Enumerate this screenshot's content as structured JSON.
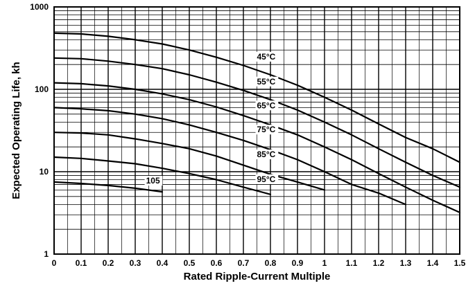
{
  "chart_data": {
    "type": "line",
    "title": "",
    "xlabel": "Rated Ripple-Current Multiple",
    "ylabel": "Expected Operating Life, kh",
    "xlim": [
      0,
      1.5
    ],
    "ylim": [
      1,
      1000
    ],
    "yscale": "log",
    "grid": true,
    "x_ticks": [
      "0",
      "0.1",
      "0.2",
      "0.3",
      "0.4",
      "0.5",
      "0.6",
      "0.7",
      "0.8",
      "0.9",
      "1",
      "1.1",
      "1.2",
      "1.3",
      "1.4",
      "1.5"
    ],
    "y_ticks": [
      "1",
      "10",
      "100",
      "1000"
    ],
    "series": [
      {
        "name": "45°C",
        "x": [
          0,
          0.1,
          0.2,
          0.3,
          0.4,
          0.5,
          0.6,
          0.7,
          0.8,
          0.9,
          1.0,
          1.1,
          1.2,
          1.3,
          1.4,
          1.5
        ],
        "y": [
          480,
          470,
          440,
          400,
          355,
          300,
          245,
          195,
          150,
          112,
          80,
          56,
          38,
          26,
          19,
          13
        ]
      },
      {
        "name": "55°C",
        "x": [
          0,
          0.1,
          0.2,
          0.3,
          0.4,
          0.5,
          0.6,
          0.7,
          0.8,
          0.9,
          1.0,
          1.1,
          1.2,
          1.3,
          1.4,
          1.5
        ],
        "y": [
          240,
          235,
          220,
          200,
          178,
          150,
          122,
          97,
          75,
          56,
          40,
          28,
          19,
          13,
          9,
          6.5
        ]
      },
      {
        "name": "65°C",
        "x": [
          0,
          0.1,
          0.2,
          0.3,
          0.4,
          0.5,
          0.6,
          0.7,
          0.8,
          0.9,
          1.0,
          1.1,
          1.2,
          1.3,
          1.4,
          1.5
        ],
        "y": [
          120,
          117,
          110,
          100,
          88,
          75,
          61,
          48,
          37,
          28,
          20,
          14,
          9.5,
          6.5,
          4.5,
          3.2
        ]
      },
      {
        "name": "75°C",
        "x": [
          0,
          0.1,
          0.2,
          0.3,
          0.4,
          0.5,
          0.6,
          0.7,
          0.8,
          0.9,
          1.0,
          1.1,
          1.2,
          1.3
        ],
        "y": [
          60,
          58,
          55,
          50,
          44,
          37,
          30,
          24,
          18.5,
          14,
          10,
          7,
          5.5,
          4
        ]
      },
      {
        "name": "85°C",
        "x": [
          0,
          0.1,
          0.2,
          0.3,
          0.4,
          0.5,
          0.6,
          0.7,
          0.8,
          0.9,
          1.0
        ],
        "y": [
          30,
          29.5,
          28,
          25,
          22,
          19,
          15.5,
          12,
          9.3,
          7.5,
          6
        ]
      },
      {
        "name": "95°C",
        "x": [
          0,
          0.1,
          0.2,
          0.3,
          0.4,
          0.5,
          0.6,
          0.7,
          0.8
        ],
        "y": [
          15,
          14.5,
          13.5,
          12.5,
          11,
          9.5,
          8,
          6.5,
          5.3
        ]
      },
      {
        "name": "105",
        "x": [
          0,
          0.1,
          0.2,
          0.3,
          0.4
        ],
        "y": [
          7.5,
          7.2,
          6.8,
          6.3,
          5.7
        ]
      }
    ],
    "series_labels": [
      {
        "series": "45°C",
        "text": "45°C",
        "x": 0.75,
        "y": 230
      },
      {
        "series": "55°C",
        "text": "55°C",
        "x": 0.75,
        "y": 115
      },
      {
        "series": "65°C",
        "text": "65°C",
        "x": 0.75,
        "y": 59
      },
      {
        "series": "75°C",
        "text": "75°C",
        "x": 0.75,
        "y": 30
      },
      {
        "series": "85°C",
        "text": "85°C",
        "x": 0.75,
        "y": 15
      },
      {
        "series": "95°C",
        "text": "95°C",
        "x": 0.75,
        "y": 7.5
      },
      {
        "series": "105",
        "text": "105",
        "x": 0.34,
        "y": 7.2
      }
    ]
  }
}
